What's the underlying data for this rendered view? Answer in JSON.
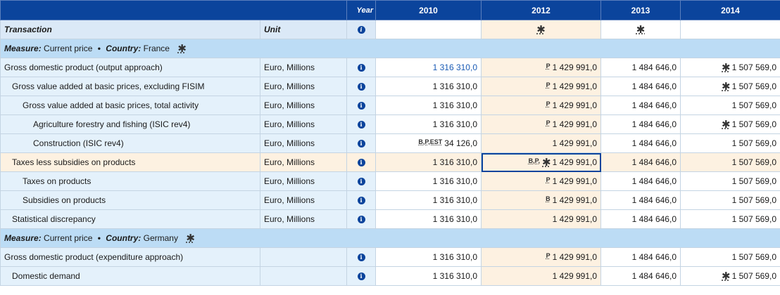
{
  "header": {
    "year_label": "Year",
    "years": [
      "2010",
      "2012",
      "2013",
      "2014"
    ]
  },
  "subheader": {
    "transaction_label": "Transaction",
    "unit_label": "Unit",
    "flag_2012": "✱",
    "flag_2013": "✱"
  },
  "france": {
    "measure_key": "Measure:",
    "measure_value": "Current price",
    "country_key": "Country:",
    "country_value": "France",
    "star": "✱"
  },
  "germany": {
    "measure_key": "Measure:",
    "measure_value": "Current price",
    "country_key": "Country:",
    "country_value": "Germany",
    "star": "✱"
  },
  "rows": [
    {
      "label": "Gross domestic product (output approach)",
      "unit": "Euro, Millions",
      "v2010": "1 316 310,0",
      "f2012": "P",
      "v2012": "1 429 991,0",
      "v2013": "1 484 646,0",
      "f2014": "✱",
      "v2014": "1 507 569,0"
    },
    {
      "label": "Gross value added at basic prices, excluding FISIM",
      "unit": "Euro, Millions",
      "v2010": "1 316 310,0",
      "f2012": "P",
      "v2012": "1 429 991,0",
      "v2013": "1 484 646,0",
      "f2014": "✱",
      "v2014": "1 507 569,0"
    },
    {
      "label": "Gross value added at basic prices, total activity",
      "unit": "Euro, Millions",
      "v2010": "1 316 310,0",
      "f2012": "P",
      "v2012": "1 429 991,0",
      "v2013": "1 484 646,0",
      "v2014": "1 507 569,0"
    },
    {
      "label": "Agriculture forestry and fishing (ISIC rev4)",
      "unit": "Euro, Millions",
      "v2010": "1 316 310,0",
      "f2012": "P",
      "v2012": "1 429 991,0",
      "v2013": "1 484 646,0",
      "f2014": "✱",
      "v2014": "1 507 569,0"
    },
    {
      "label": "Construction (ISIC rev4)",
      "unit": "Euro, Millions",
      "f2010": "B,P,EST",
      "v2010": "34 126,0",
      "v2012": "1 429 991,0",
      "v2013": "1 484 646,0",
      "v2014": "1 507 569,0"
    },
    {
      "label": "Taxes less subsidies on products",
      "unit": "Euro, Millions",
      "v2010": "1 316 310,0",
      "f2012": "B,P,",
      "f2012star": "✱",
      "v2012": "1 429 991,0",
      "v2013": "1 484 646,0",
      "v2014": "1 507 569,0"
    },
    {
      "label": "Taxes on products",
      "unit": "Euro, Millions",
      "v2010": "1 316 310,0",
      "f2012": "P",
      "v2012": "1 429 991,0",
      "v2013": "1 484 646,0",
      "v2014": "1 507 569,0"
    },
    {
      "label": "Subsidies on products",
      "unit": "Euro, Millions",
      "v2010": "1 316 310,0",
      "f2012": "B",
      "v2012": "1 429 991,0",
      "v2013": "1 484 646,0",
      "v2014": "1 507 569,0"
    },
    {
      "label": "Statistical discrepancy",
      "unit": "Euro, Millions",
      "v2010": "1 316 310,0",
      "v2012": "1 429 991,0",
      "v2013": "1 484 646,0",
      "v2014": "1 507 569,0"
    },
    {
      "label": "Gross domestic product (expenditure approach)",
      "unit": "",
      "v2010": "1 316 310,0",
      "f2012": "P",
      "v2012": "1 429 991,0",
      "v2013": "1 484 646,0",
      "v2014": "1 507 569,0"
    },
    {
      "label": "Domestic demand",
      "unit": "",
      "v2010": "1 316 310,0",
      "v2012": "1 429 991,0",
      "v2013": "1 484 646,0",
      "f2014": "✱",
      "v2014": "1 507 569,0"
    }
  ],
  "info_icon": "i"
}
